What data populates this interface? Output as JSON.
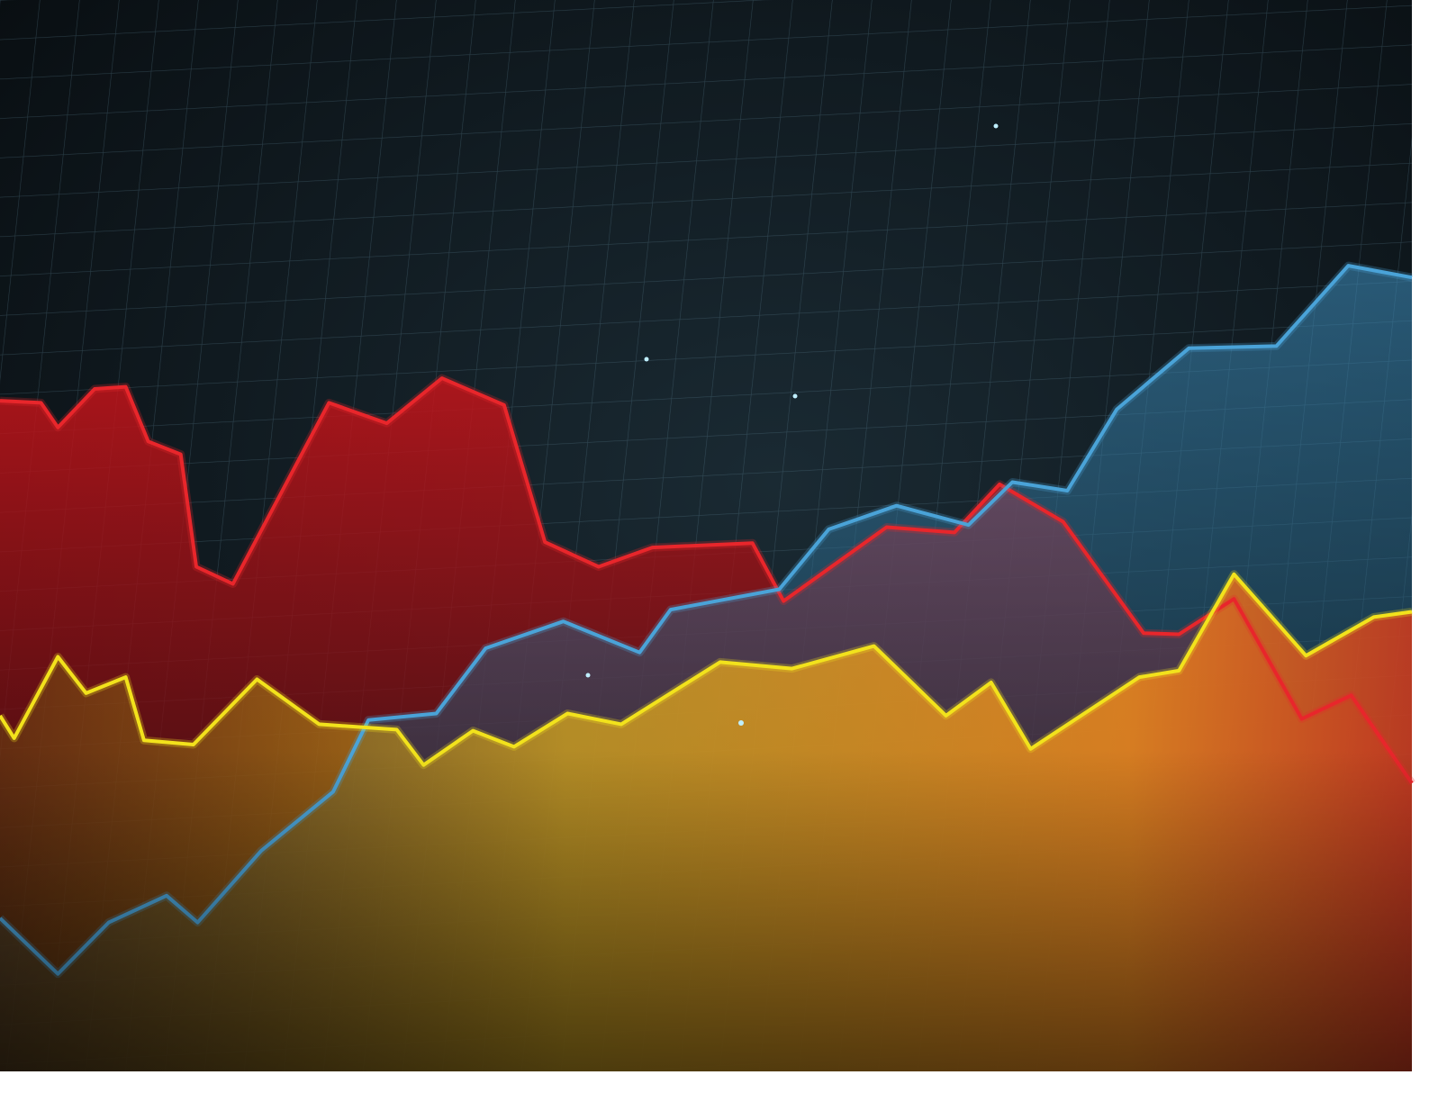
{
  "chart_data": {
    "type": "area",
    "xlim": [
      0,
      100
    ],
    "ylim": [
      0,
      100
    ],
    "series": [
      {
        "color": "#e8262b",
        "x": [
          0,
          2.9,
          4.1,
          6.7,
          8.9,
          10.5,
          12.8,
          13.9,
          16.5,
          23.3,
          27.4,
          31.3,
          35.7,
          38.6,
          42.4,
          46.2,
          53.3,
          55.5,
          62.8,
          67.6,
          70.8,
          75.3,
          81.0,
          83.5,
          87.4,
          92.2,
          95.7,
          100
        ],
        "values": [
          62.6,
          62.4,
          60.1,
          63.7,
          63.9,
          58.8,
          57.6,
          47.1,
          45.5,
          62.4,
          60.5,
          64.7,
          62.2,
          49.4,
          47.1,
          48.9,
          49.3,
          43.9,
          50.8,
          50.3,
          54.8,
          51.3,
          40.9,
          40.8,
          44.1,
          32.9,
          35.1,
          26.9
        ]
      },
      {
        "color": "#4aa3d8",
        "x": [
          0,
          4.1,
          7.7,
          11.8,
          14.0,
          18.5,
          23.6,
          26.1,
          30.9,
          34.4,
          39.9,
          45.3,
          47.5,
          55.2,
          58.7,
          63.5,
          68.6,
          71.7,
          75.6,
          79.1,
          84.2,
          90.4,
          95.5,
          100
        ],
        "values": [
          14.3,
          9.1,
          13.9,
          16.4,
          13.9,
          20.6,
          26.1,
          32.8,
          33.4,
          39.5,
          42.0,
          39.1,
          43.1,
          45.0,
          50.6,
          52.8,
          51.0,
          55.0,
          54.2,
          61.8,
          67.5,
          67.7,
          75.2,
          74.1
        ]
      },
      {
        "color": "#f2e21c",
        "x": [
          0,
          1.0,
          4.1,
          6.1,
          8.9,
          10.2,
          13.7,
          18.2,
          22.6,
          28.1,
          30.0,
          33.5,
          36.4,
          40.2,
          44.0,
          51.0,
          56.1,
          61.9,
          67.0,
          70.2,
          73.0,
          80.7,
          83.5,
          87.4,
          92.5,
          97.3,
          100
        ],
        "values": [
          33.2,
          31.1,
          38.7,
          35.3,
          36.8,
          30.9,
          30.5,
          36.6,
          32.4,
          31.9,
          28.6,
          31.8,
          30.3,
          33.4,
          32.4,
          38.2,
          37.6,
          39.7,
          33.2,
          36.3,
          30.1,
          36.8,
          37.4,
          46.4,
          38.8,
          42.4,
          42.9
        ]
      }
    ]
  }
}
